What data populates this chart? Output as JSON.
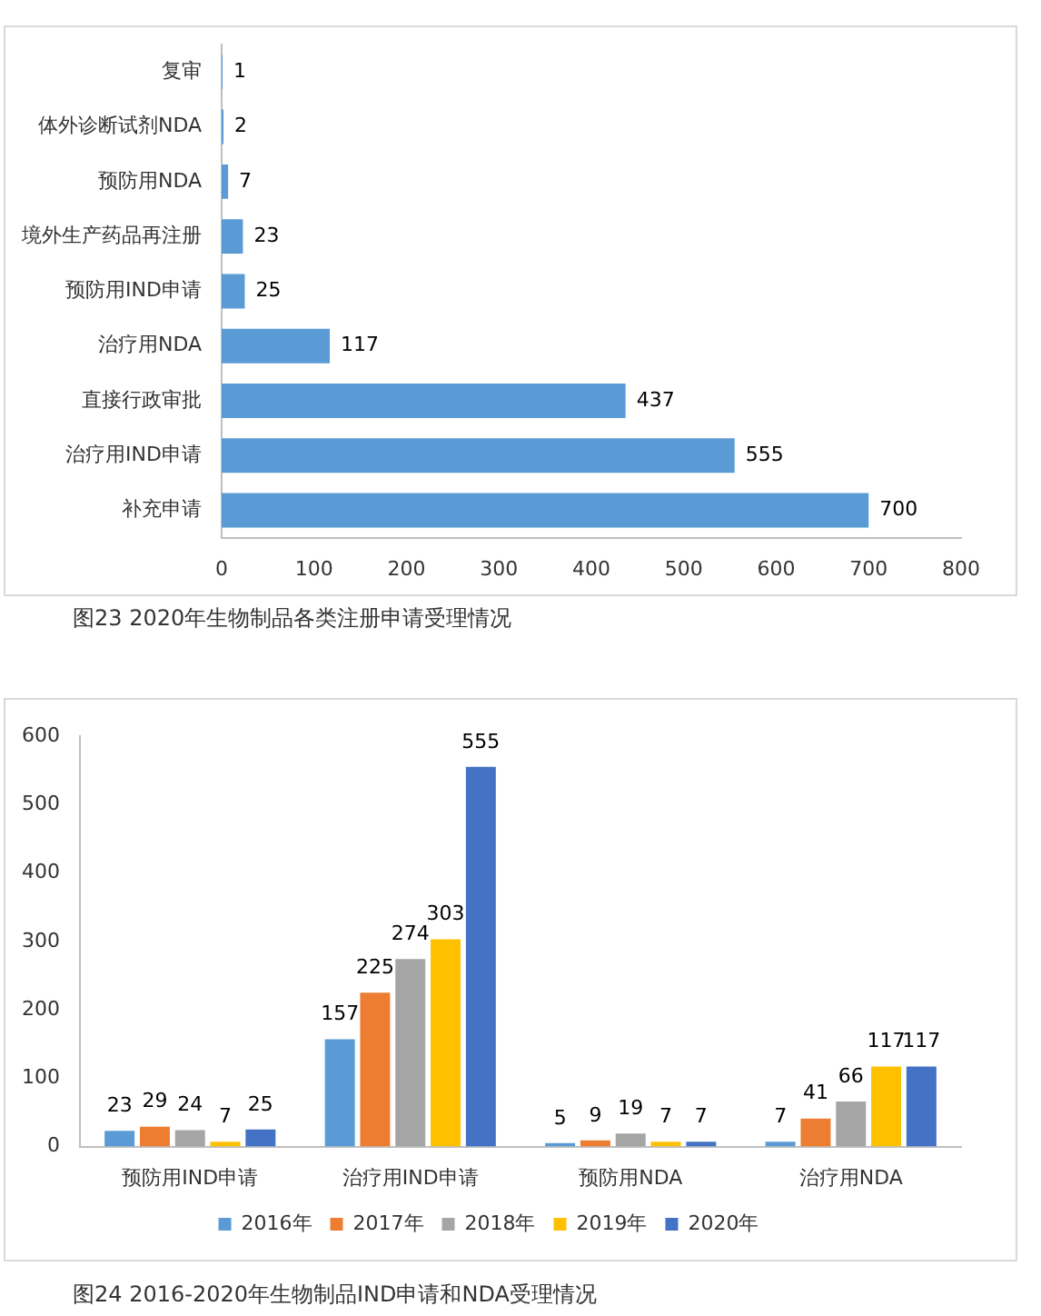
{
  "chart_data": [
    {
      "type": "bar",
      "title": "图23  2020年生物制品各类注册申请受理情况",
      "orientation": "horizontal",
      "categories": [
        "复审",
        "体外诊断试剂NDA",
        "预防用NDA",
        "境外生产药品再注册",
        "预防用IND申请",
        "治疗用NDA",
        "直接行政审批",
        "治疗用IND申请",
        "补充申请"
      ],
      "values": [
        1,
        2,
        7,
        23,
        25,
        117,
        437,
        555,
        700
      ],
      "color": "#5b9bd5",
      "xlim": [
        0,
        800
      ],
      "xticks": [
        0,
        100,
        200,
        300,
        400,
        500,
        600,
        700,
        800
      ],
      "data_labels": true,
      "grid": false,
      "legend": false
    },
    {
      "type": "bar",
      "title": "图24  2016-2020年生物制品IND申请和NDA受理情况",
      "categories": [
        "预防用IND申请",
        "治疗用IND申请",
        "预防用NDA",
        "治疗用NDA"
      ],
      "series": [
        {
          "name": "2016年",
          "color": "#5b9bd5",
          "values": [
            23,
            157,
            5,
            7
          ]
        },
        {
          "name": "2017年",
          "color": "#ed7d31",
          "values": [
            29,
            225,
            9,
            41
          ]
        },
        {
          "name": "2018年",
          "color": "#a5a5a5",
          "values": [
            24,
            274,
            19,
            66
          ]
        },
        {
          "name": "2019年",
          "color": "#ffc000",
          "values": [
            7,
            303,
            7,
            117
          ]
        },
        {
          "name": "2020年",
          "color": "#4472c4",
          "values": [
            25,
            555,
            7,
            117
          ]
        }
      ],
      "ylim": [
        0,
        600
      ],
      "yticks": [
        0,
        100,
        200,
        300,
        400,
        500,
        600
      ],
      "data_labels": true,
      "grid": false,
      "legend": "bottom"
    }
  ]
}
